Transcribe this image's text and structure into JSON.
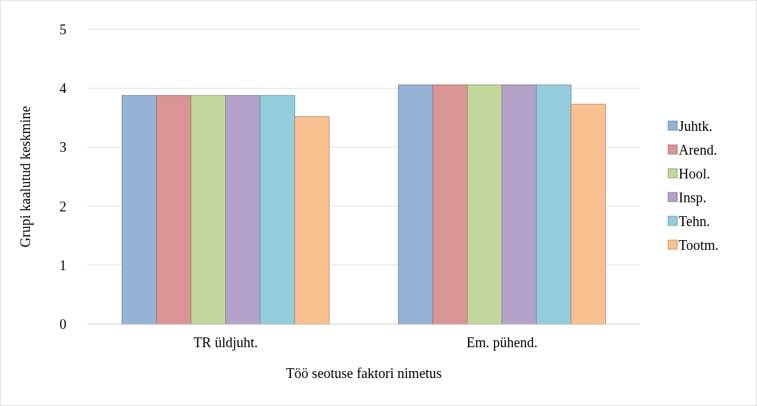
{
  "chart_data": {
    "type": "bar",
    "xlabel": "Töö seotuse faktori nimetus",
    "ylabel": "Grupi kaalutud keskmine",
    "categories": [
      "TR üldjuht.",
      "Em. pühend."
    ],
    "series": [
      {
        "name": "Juhtk.",
        "color": "#95b3d7",
        "values": [
          3.88,
          4.06
        ]
      },
      {
        "name": "Arend.",
        "color": "#d99694",
        "values": [
          3.88,
          4.06
        ]
      },
      {
        "name": "Hool.",
        "color": "#c3d69b",
        "values": [
          3.88,
          4.06
        ]
      },
      {
        "name": "Insp.",
        "color": "#b3a2c7",
        "values": [
          3.88,
          4.06
        ]
      },
      {
        "name": "Tehn.",
        "color": "#93cddd",
        "values": [
          3.88,
          4.06
        ]
      },
      {
        "name": "Tootm.",
        "color": "#fac090",
        "values": [
          3.52,
          3.73
        ]
      }
    ],
    "ylim": [
      0,
      5
    ],
    "yticks": [
      0,
      1,
      2,
      3,
      4,
      5
    ],
    "grid": "y",
    "legend": "right"
  }
}
